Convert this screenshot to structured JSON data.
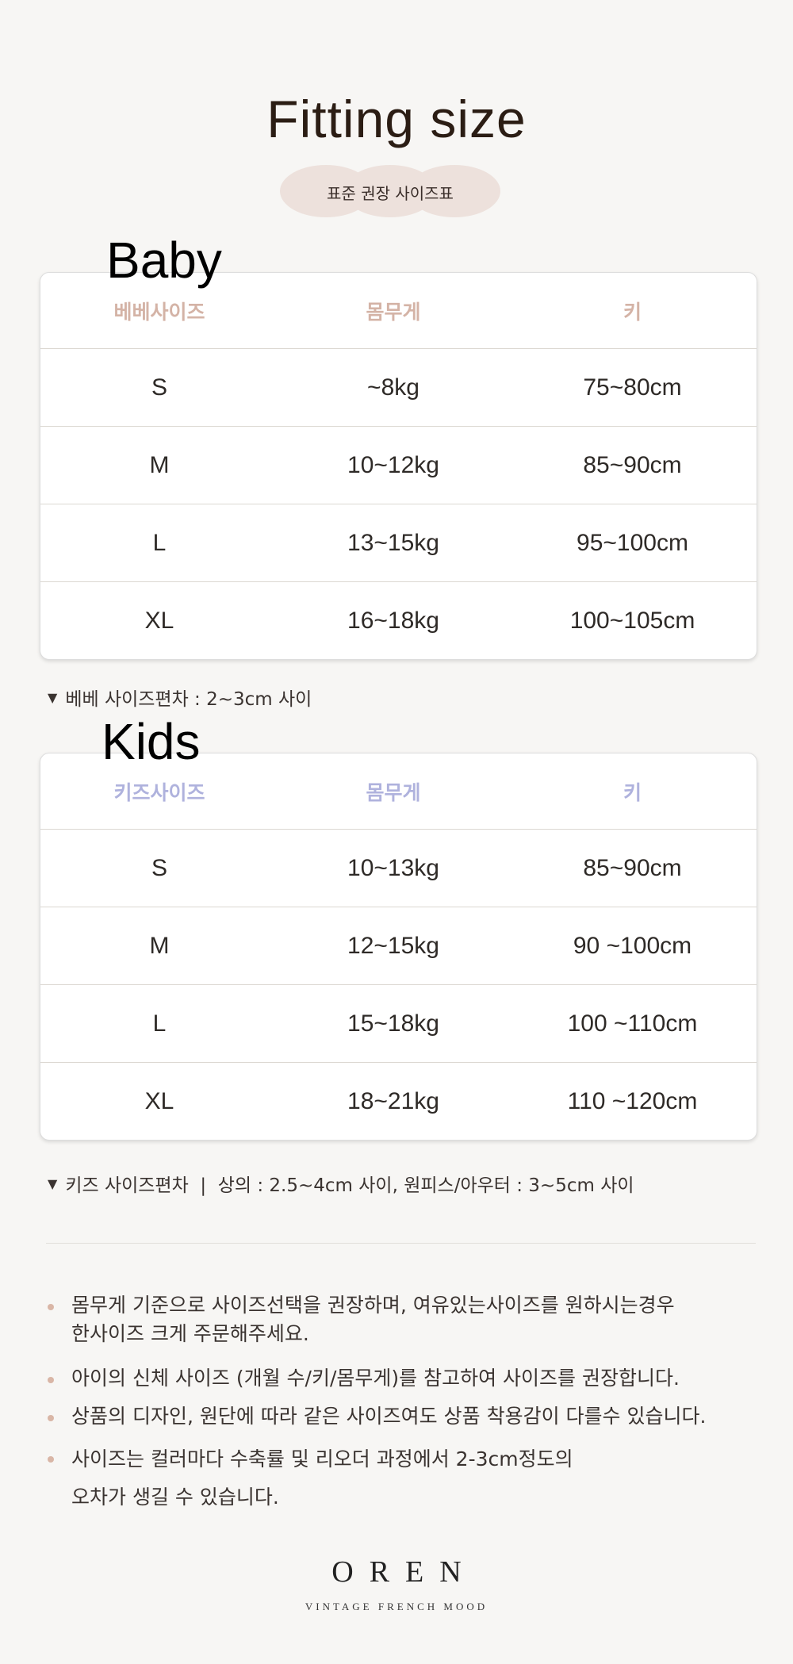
{
  "header": {
    "title": "Fitting size",
    "subtitle": "표준 권장 사이즈표"
  },
  "colors": {
    "background": "#f7f6f4",
    "baby_header": "#d4b3a6",
    "kids_header": "#afb2dd",
    "pill": "#ede1dc",
    "bullet": "#d9b6a6"
  },
  "baby": {
    "label": "Baby",
    "columns": [
      "베베사이즈",
      "몸무게",
      "키"
    ],
    "rows": [
      [
        "S",
        "~8kg",
        "75~80cm"
      ],
      [
        "M",
        "10~12kg",
        "85~90cm"
      ],
      [
        "L",
        "13~15kg",
        "95~100cm"
      ],
      [
        "XL",
        "16~18kg",
        "100~105cm"
      ]
    ],
    "note": "베베 사이즈편차 : 2~3cm 사이",
    "note_icon": "chevron-down-icon"
  },
  "kids": {
    "label": "Kids",
    "columns": [
      "키즈사이즈",
      "몸무게",
      "키"
    ],
    "rows": [
      [
        "S",
        "10~13kg",
        "85~90cm"
      ],
      [
        "M",
        "12~15kg",
        "90 ~100cm"
      ],
      [
        "L",
        "15~18kg",
        "100 ~110cm"
      ],
      [
        "XL",
        "18~21kg",
        "110 ~120cm"
      ]
    ],
    "note": "키즈 사이즈편차  |  상의 : 2.5~4cm 사이, 원피스/아우터 : 3~5cm 사이",
    "note_icon": "chevron-down-icon"
  },
  "notices": [
    "몸무게 기준으로 사이즈선택을 권장하며, 여유있는사이즈를 원하시는경우\n한사이즈 크게 주문해주세요.",
    "아이의 신체 사이즈 (개월 수/키/몸무게)를 참고하여 사이즈를 권장합니다.",
    "상품의 디자인, 원단에 따라 같은 사이즈여도 상품 착용감이 다를수 있습니다.",
    "사이즈는 컬러마다 수축률 및 리오더 과정에서 2-3cm정도의\n오차가 생길 수 있습니다."
  ],
  "brand": {
    "name": "OREN",
    "tagline": "VINTAGE FRENCH MOOD"
  }
}
